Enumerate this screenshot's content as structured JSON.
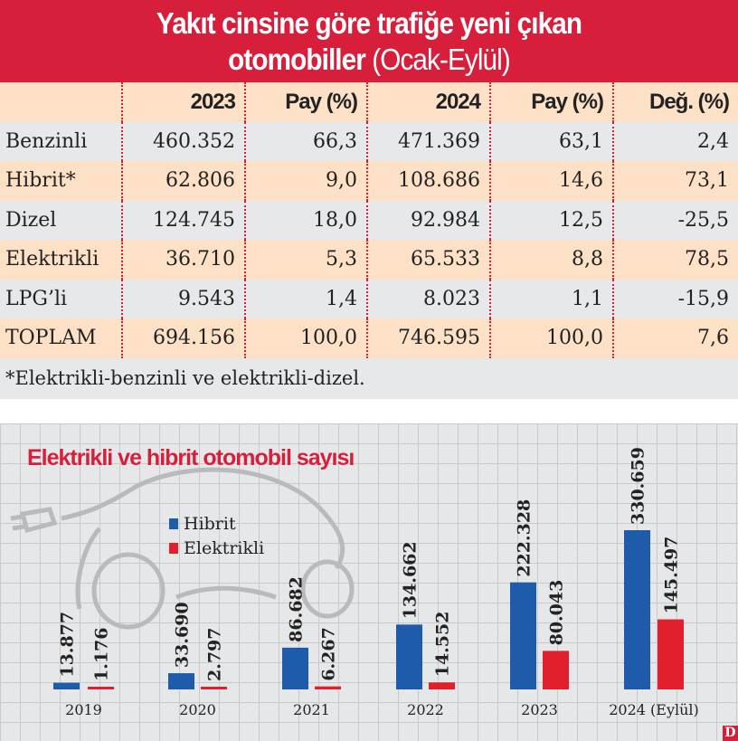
{
  "banner": {
    "title_line1": "Yakıt cinsine göre trafiğe yeni çıkan",
    "title_line2_bold": "otomobiller",
    "title_line2_light": "(Ocak-Eylül)"
  },
  "table": {
    "headers": [
      "",
      "2023",
      "Pay (%)",
      "2024",
      "Pay (%)",
      "Değ. (%)"
    ],
    "rows": [
      [
        "Benzinli",
        "460.352",
        "66,3",
        "471.369",
        "63,1",
        "2,4"
      ],
      [
        "Hibrit*",
        "62.806",
        "9,0",
        "108.686",
        "14,6",
        "73,1"
      ],
      [
        "Dizel",
        "124.745",
        "18,0",
        "92.984",
        "12,5",
        "-25,5"
      ],
      [
        "Elektrikli",
        "36.710",
        "5,3",
        "65.533",
        "8,8",
        "78,5"
      ],
      [
        "LPG’li",
        "9.543",
        "1,4",
        "8.023",
        "1,1",
        "-15,9"
      ],
      [
        "TOPLAM",
        "694.156",
        "100,0",
        "746.595",
        "100,0",
        "7,6"
      ]
    ],
    "footnote": "*Elektrikli-benzinli ve elektrikli-dizel."
  },
  "chart_data": {
    "type": "bar",
    "title": "Elektrikli ve hibrit otomobil sayısı",
    "categories": [
      "2019",
      "2020",
      "2021",
      "2022",
      "2023",
      "2024 (Eylül)"
    ],
    "series": [
      {
        "name": "Hibrit",
        "color": "#1f5bab",
        "values": [
          13877,
          33690,
          86682,
          134662,
          222328,
          330659
        ],
        "labels": [
          "13.877",
          "33.690",
          "86.682",
          "134.662",
          "222.328",
          "330.659"
        ]
      },
      {
        "name": "Elektrikli",
        "color": "#e21f2d",
        "values": [
          1176,
          2797,
          6267,
          14552,
          80043,
          145497
        ],
        "labels": [
          "1.176",
          "2.797",
          "6.267",
          "14.552",
          "80.043",
          "145.497"
        ]
      }
    ],
    "legend": "top-left",
    "grid": true
  },
  "logo": "D"
}
